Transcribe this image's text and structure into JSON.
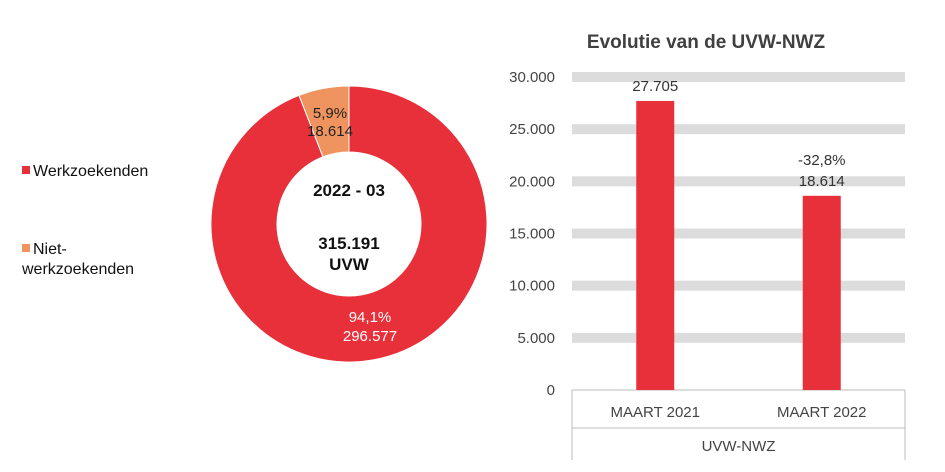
{
  "chart_data": [
    {
      "type": "pie",
      "variant": "donut",
      "center_lines": [
        "2022 - 03",
        "315.191",
        "UVW"
      ],
      "legend": {
        "placement": "left"
      },
      "slices": [
        {
          "name": "Werkzoekenden",
          "value": 296577,
          "percent_label": "94,1%",
          "value_label": "296.577",
          "color": "#e8303a"
        },
        {
          "name": "Niet-werkzoekenden",
          "value": 18614,
          "percent_label": "5,9%",
          "value_label": "18.614",
          "color": "#ef945e"
        }
      ],
      "legend_labels": [
        [
          "Werkzoekenden"
        ],
        [
          "Niet-",
          "werkzoekenden"
        ]
      ]
    },
    {
      "type": "bar",
      "title": "Evolutie van de UVW-NWZ",
      "categories": [
        "MAART 2021",
        "MAART 2022"
      ],
      "group_label": "UVW-NWZ",
      "values": [
        27705,
        18614
      ],
      "data_labels": [
        [
          "27.705"
        ],
        [
          "-32,8%",
          "18.614"
        ]
      ],
      "ylim": [
        0,
        30000
      ],
      "yticks": [
        0,
        5000,
        10000,
        15000,
        20000,
        25000,
        30000
      ],
      "ytick_labels": [
        "0",
        "5.000",
        "10.000",
        "15.000",
        "20.000",
        "25.000",
        "30.000"
      ],
      "grid": true,
      "bar_color": "#e8303a",
      "grid_color": "#dcdcdc"
    }
  ]
}
